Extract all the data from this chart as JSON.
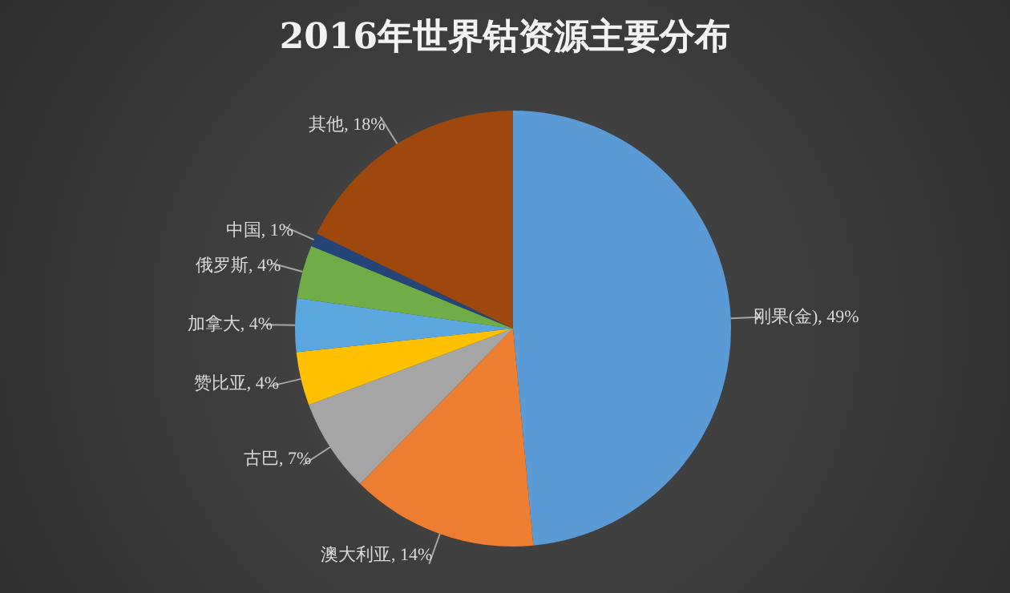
{
  "chart_data": {
    "type": "pie",
    "title": "2016年世界钴资源主要分布",
    "categories": [
      "刚果(金)",
      "澳大利亚",
      "古巴",
      "赞比亚",
      "加拿大",
      "俄罗斯",
      "中国",
      "其他"
    ],
    "values": [
      49,
      14,
      7,
      4,
      4,
      4,
      1,
      18
    ],
    "value_labels": [
      "49%",
      "14%",
      "7%",
      "4%",
      "4%",
      "4%",
      "1%",
      "18%"
    ],
    "colors": [
      "#5b9bd5",
      "#ed7d31",
      "#a5a5a5",
      "#ffc000",
      "#5aa7e0",
      "#70ad47",
      "#264478",
      "#9e480e"
    ]
  }
}
